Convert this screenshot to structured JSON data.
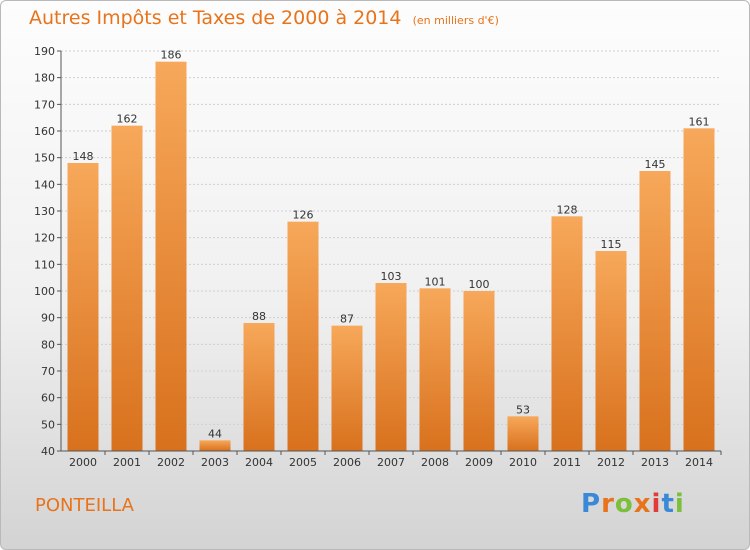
{
  "header": {
    "title": "Autres Impôts et Taxes de 2000 à 2014",
    "unit": "(en milliers d'€)"
  },
  "footer": {
    "commune": "PONTEILLA",
    "logo_text": "Proxiti",
    "logo_colors": [
      "#3a88d8",
      "#e8731a",
      "#7bbf3a",
      "#e8731a",
      "#e23b3b",
      "#3a88d8",
      "#7bbf3a"
    ]
  },
  "colors": {
    "bar_light": "#f7a85a",
    "bar_dark": "#d8711d",
    "title": "#e8731a"
  },
  "chart_data": {
    "type": "bar",
    "title": "Autres Impôts et Taxes de 2000 à 2014",
    "subtitle": "(en milliers d'€)",
    "categories": [
      "2000",
      "2001",
      "2002",
      "2003",
      "2004",
      "2005",
      "2006",
      "2007",
      "2008",
      "2009",
      "2010",
      "2011",
      "2012",
      "2013",
      "2014"
    ],
    "values": [
      148,
      162,
      186,
      44,
      88,
      126,
      87,
      103,
      101,
      100,
      53,
      128,
      115,
      145,
      161
    ],
    "ylim": [
      40,
      190
    ],
    "yticks": [
      40,
      50,
      60,
      70,
      80,
      90,
      100,
      110,
      120,
      130,
      140,
      150,
      160,
      170,
      180,
      190
    ],
    "grid": true,
    "data_labels": true
  }
}
